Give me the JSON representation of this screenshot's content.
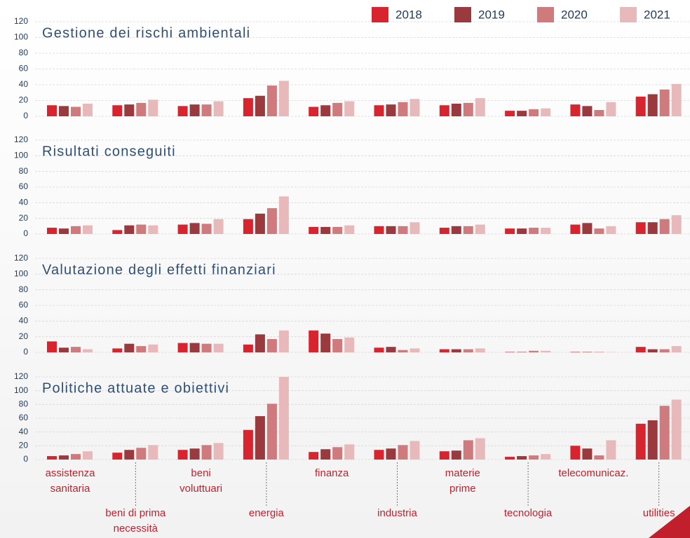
{
  "chart_data": {
    "type": "bar",
    "categories": [
      "assistenza\nsanitaria",
      "beni di prima\nnecessità",
      "beni\nvoluttuari",
      "energia",
      "finanza",
      "industria",
      "materie\nprime",
      "tecnologia",
      "telecomunicaz.",
      "utilities"
    ],
    "series": [
      {
        "name": "2018",
        "color": "#d7242f"
      },
      {
        "name": "2019",
        "color": "#9b3a3e"
      },
      {
        "name": "2020",
        "color": "#cf7a7d"
      },
      {
        "name": "2021",
        "color": "#e8b9ba"
      }
    ],
    "grid": true,
    "panels": [
      {
        "title": "Gestione dei rischi ambientali",
        "ylim": [
          0,
          120
        ],
        "yticks": [
          0,
          20,
          40,
          60,
          80,
          100,
          120
        ],
        "series": [
          {
            "values": [
              14,
              14,
              13,
              23,
              12,
              14,
              14,
              7,
              15,
              25
            ]
          },
          {
            "values": [
              13,
              15,
              15,
              26,
              14,
              15,
              16,
              7,
              13,
              28
            ]
          },
          {
            "values": [
              12,
              17,
              15,
              39,
              17,
              18,
              17,
              9,
              8,
              34
            ]
          },
          {
            "values": [
              16,
              21,
              19,
              45,
              19,
              22,
              23,
              10,
              18,
              41
            ]
          }
        ]
      },
      {
        "title": "Risultati conseguiti",
        "ylim": [
          0,
          120
        ],
        "yticks": [
          0,
          20,
          40,
          60,
          80,
          100,
          120
        ],
        "series": [
          {
            "values": [
              8,
              5,
              12,
              19,
              9,
              10,
              8,
              7,
              12,
              15
            ]
          },
          {
            "values": [
              7,
              11,
              14,
              26,
              9,
              10,
              10,
              7,
              14,
              15
            ]
          },
          {
            "values": [
              10,
              12,
              13,
              33,
              9,
              10,
              10,
              8,
              7,
              19
            ]
          },
          {
            "values": [
              11,
              11,
              19,
              48,
              11,
              15,
              12,
              8,
              10,
              24
            ]
          }
        ]
      },
      {
        "title": "Valutazione degli effetti finanziari",
        "ylim": [
          0,
          120
        ],
        "yticks": [
          0,
          20,
          40,
          60,
          80,
          100,
          120
        ],
        "series": [
          {
            "values": [
              14,
              5,
              12,
              10,
              28,
              6,
              4,
              0.5,
              0.5,
              7
            ]
          },
          {
            "values": [
              6,
              11,
              12,
              23,
              24,
              7,
              4,
              0.5,
              0.5,
              4
            ]
          },
          {
            "values": [
              7,
              8,
              11,
              17,
              17,
              3,
              4,
              2,
              0.5,
              4
            ]
          },
          {
            "values": [
              4,
              10,
              11,
              28,
              19,
              5,
              5,
              2,
              0.3,
              8
            ]
          }
        ]
      },
      {
        "title": "Politiche attuate e obiettivi",
        "ylim": [
          0,
          120
        ],
        "yticks": [
          0,
          20,
          40,
          60,
          80,
          100,
          120
        ],
        "series": [
          {
            "values": [
              5,
              10,
              14,
              43,
              11,
              14,
              12,
              4,
              20,
              52
            ]
          },
          {
            "values": [
              6,
              14,
              16,
              63,
              15,
              16,
              13,
              5,
              16,
              57
            ]
          },
          {
            "values": [
              8,
              17,
              21,
              81,
              18,
              21,
              28,
              6,
              6,
              78
            ]
          },
          {
            "values": [
              12,
              21,
              24,
              120,
              22,
              27,
              31,
              8,
              28,
              87
            ]
          }
        ]
      }
    ]
  }
}
